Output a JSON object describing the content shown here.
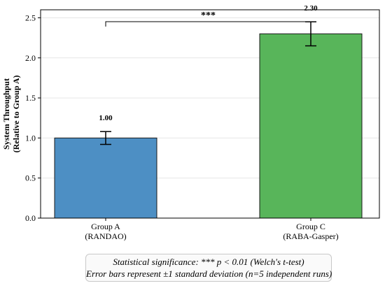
{
  "colors": {
    "bar_a": "#4d8fc4",
    "bar_c": "#58b55a",
    "edge": "#1a1a1a",
    "grid": "#e6e6e6"
  },
  "chart_data": {
    "type": "bar",
    "categories": [
      {
        "line1": "Group A",
        "line2": "(RANDAO)"
      },
      {
        "line1": "Group C",
        "line2": "(RABA-Gasper)"
      }
    ],
    "values": [
      1.0,
      2.3
    ],
    "errors": [
      0.08,
      0.15
    ],
    "value_labels": [
      "1.00",
      "2.30"
    ],
    "ylabel_line1": "System Throughput",
    "ylabel_line2": "(Relative to Group A)",
    "ylim": [
      0,
      2.6
    ],
    "yticks": [
      "0.0",
      "0.5",
      "1.0",
      "1.5",
      "2.0",
      "2.5"
    ],
    "grid": true,
    "significance": {
      "label": "***",
      "between": [
        0,
        1
      ]
    }
  },
  "notes": {
    "line1": "Statistical significance: *** p < 0.01 (Welch's t-test)",
    "line2": "Error bars represent ±1 standard deviation (n=5 independent runs)"
  }
}
